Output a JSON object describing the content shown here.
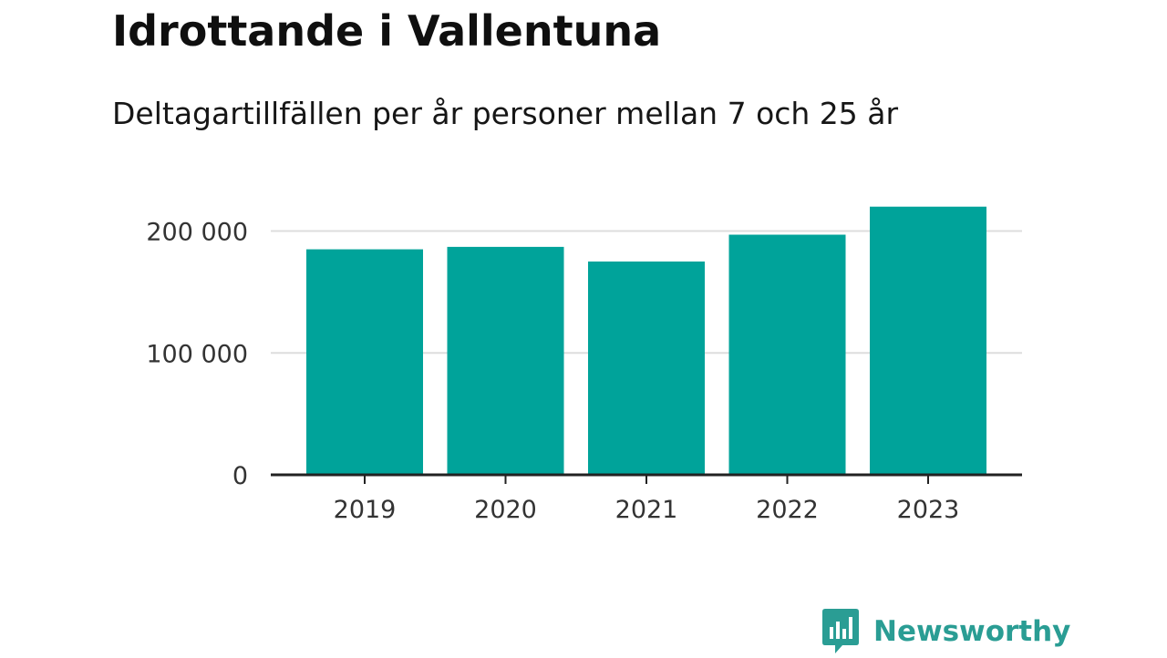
{
  "chart_data": {
    "type": "bar",
    "title": "Idrottande i Vallentuna",
    "subtitle": "Deltagartillfällen per år personer mellan 7 och 25 år",
    "categories": [
      "2019",
      "2020",
      "2021",
      "2022",
      "2023"
    ],
    "values": [
      185000,
      187000,
      175000,
      197000,
      220000
    ],
    "ylim": [
      0,
      240000
    ],
    "yticks": [
      0,
      100000,
      200000
    ],
    "ytick_labels": [
      "0",
      "100 000",
      "200 000"
    ],
    "xlabel": "",
    "ylabel": "",
    "grid": true,
    "colors": {
      "bar": "#00a39a",
      "grid": "#dddddd",
      "axis": "#222222",
      "tick_text": "#333333"
    }
  },
  "branding": {
    "name": "Newsworthy",
    "color": "#2a9d94",
    "icon": "newsworthy-logo-icon"
  }
}
